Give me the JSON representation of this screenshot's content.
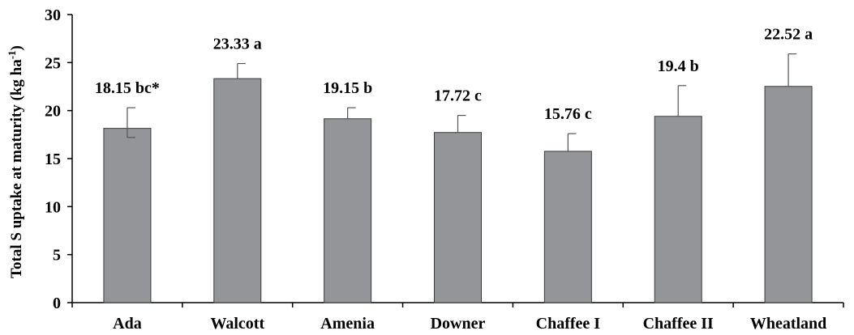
{
  "chart_data": {
    "type": "bar",
    "categories": [
      "Ada",
      "Walcott",
      "Amenia",
      "Downer",
      "Chaffee I",
      "Chaffee II",
      "Wheatland"
    ],
    "values": [
      18.15,
      23.33,
      19.15,
      17.72,
      15.76,
      19.4,
      22.52
    ],
    "error_upper": [
      20.3,
      24.9,
      20.3,
      19.5,
      17.6,
      22.6,
      25.9
    ],
    "error_lower": [
      17.2,
      null,
      null,
      null,
      null,
      null,
      null
    ],
    "data_labels": [
      "18.15 bc*",
      "23.33 a",
      "19.15 b",
      "17.72 c",
      "15.76 c",
      "19.4 b",
      "22.52 a"
    ],
    "title": "",
    "xlabel": "",
    "ylabel": "Total S uptake at maturity (kg ha",
    "ylabel_superscript": "-1",
    "ylabel_suffix": ")",
    "ylim": [
      0,
      30
    ],
    "yticks": [
      0,
      5,
      10,
      15,
      20,
      25,
      30
    ],
    "grid": false,
    "legend": "none",
    "bar_color": "#939598",
    "bar_edge_color": "#3a3a3a",
    "axis_color": "#000000"
  }
}
